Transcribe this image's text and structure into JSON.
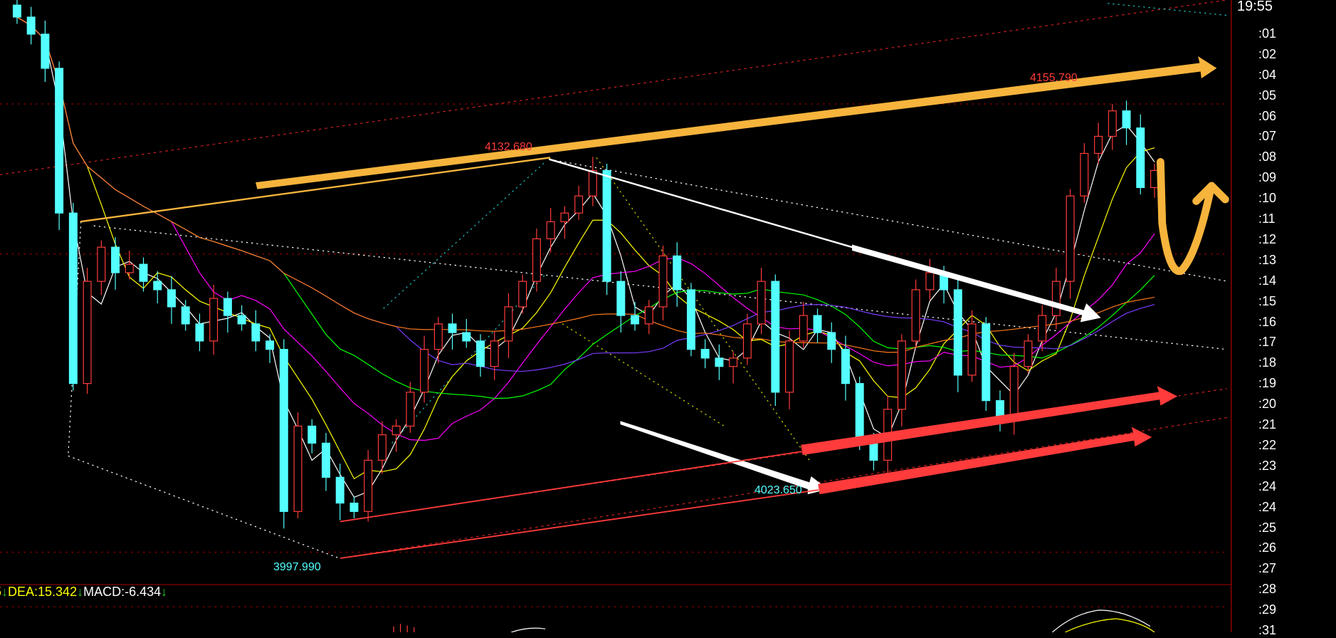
{
  "chart_data": {
    "type": "candlestick",
    "close": [
      4178.6,
      4172.9,
      4161.5,
      4113.2,
      4056.3,
      4090.4,
      4101.8,
      4093.3,
      4096.1,
      4090.4,
      4087.6,
      4081.9,
      4076.2,
      4070.5,
      4084.7,
      4079.0,
      4076.2,
      4070.5,
      4067.7,
      4013.6,
      4042.1,
      4036.4,
      4025.0,
      4016.4,
      4013.6,
      4030.7,
      4039.2,
      4042.1,
      4053.4,
      4067.7,
      4076.2,
      4073.3,
      4070.5,
      4062.0,
      4070.5,
      4081.9,
      4090.4,
      4104.6,
      4110.3,
      4113.2,
      4118.9,
      4127.4,
      4090.4,
      4079.0,
      4076.2,
      4081.9,
      4098.9,
      4087.6,
      4067.7,
      4064.8,
      4062.0,
      4064.8,
      4076.2,
      4090.4,
      4053.4,
      4070.5,
      4079.0,
      4073.3,
      4067.7,
      4056.3,
      4036.4,
      4030.7,
      4047.7,
      4070.5,
      4087.6,
      4093.3,
      4087.6,
      4059.1,
      4076.2,
      4050.6,
      4044.9,
      4062.0,
      4070.5,
      4079.0,
      4090.4,
      4118.9,
      4133.1,
      4138.8,
      4147.3,
      4141.6,
      4121.7,
      4127.4
    ],
    "annotations": {
      "high_main": "4155.790",
      "high_prev": "4132.680",
      "low_main": "3997.990",
      "low_mid": "4023.650"
    },
    "up_color": "#ff3b3b",
    "down_color": "#54ffff",
    "ma_colors": [
      "#ffffff",
      "#ffff00",
      "#ff00ff",
      "#00ff00",
      "#7a3cff",
      "#ff7a1a"
    ],
    "ylim": [
      3989.2,
      4184.3
    ],
    "grid": false
  },
  "time_axis": [
    "19:55",
    ":01",
    ":02",
    ":04",
    ":05",
    ":06",
    ":07",
    ":08",
    ":09",
    ":10",
    ":11",
    ":12",
    ":13",
    ":14",
    ":15",
    ":16",
    ":17",
    ":18",
    ":19",
    ":20",
    ":21",
    ":22",
    ":23",
    ":24",
    ":24",
    ":25",
    ":26",
    ":27",
    ":28",
    ":29",
    ":31"
  ],
  "macd": {
    "prefix": "5",
    "arrow": "↓",
    "dea": "DEA:15.342",
    "macd": "MACD:-6.434"
  }
}
